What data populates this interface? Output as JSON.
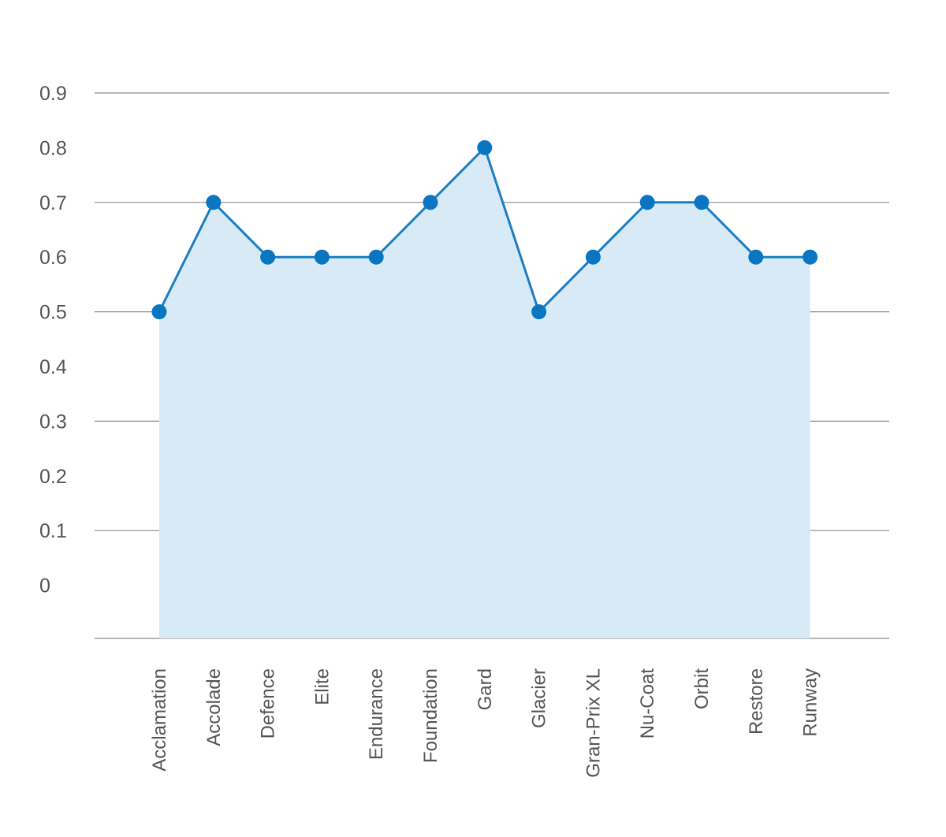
{
  "chart_data": {
    "type": "area",
    "title": "",
    "xlabel": "",
    "ylabel": "",
    "categories": [
      "Acclamation",
      "Accolade",
      "Defence",
      "Elite",
      "Endurance",
      "Foundation",
      "Gard",
      "Glacier",
      "Gran-Prix XL",
      "Nu-Coat",
      "Orbit",
      "Restore",
      "Runway"
    ],
    "values": [
      0.5,
      0.7,
      0.6,
      0.6,
      0.6,
      0.7,
      0.8,
      0.5,
      0.6,
      0.7,
      0.7,
      0.6,
      0.6
    ],
    "y_ticks": [
      "0.9",
      "0.8",
      "0.7",
      "0.6",
      "0.5",
      "0.4",
      "0.3",
      "0.2",
      "0.1",
      "0"
    ],
    "grid_at": [
      0.9,
      0.7,
      0.5,
      0.3,
      0.1
    ],
    "ylim": [
      0,
      0.9
    ],
    "grid": true,
    "legend": "none",
    "colors": {
      "line": "#1b7dc3",
      "fill": "#d9eaf7",
      "marker": "#0a76c2",
      "grid": "#8a8a8a",
      "text": "#555555"
    }
  }
}
